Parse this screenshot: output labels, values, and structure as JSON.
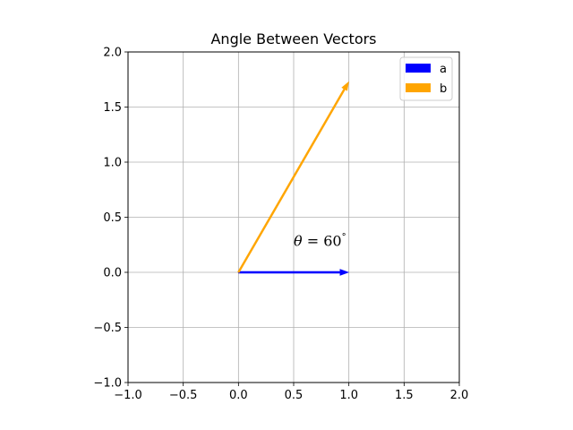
{
  "chart_data": {
    "type": "quiver",
    "title": "Angle Between Vectors",
    "xlabel": "",
    "ylabel": "",
    "xlim": [
      -1.0,
      2.0
    ],
    "ylim": [
      -1.0,
      2.0
    ],
    "grid": true,
    "x_ticks": [
      -1.0,
      -0.5,
      0.0,
      0.5,
      1.0,
      1.5,
      2.0
    ],
    "y_ticks": [
      -1.0,
      -0.5,
      0.0,
      0.5,
      1.0,
      1.5,
      2.0
    ],
    "x_tick_labels": [
      "−1.0",
      "−0.5",
      "0.0",
      "0.5",
      "1.0",
      "1.5",
      "2.0"
    ],
    "y_tick_labels": [
      "−1.0",
      "−0.5",
      "0.0",
      "0.5",
      "1.0",
      "1.5",
      "2.0"
    ],
    "legend_position": "top-right",
    "series": [
      {
        "name": "a",
        "color": "#0000ff",
        "origin": [
          0,
          0
        ],
        "vector": [
          1.0,
          0.0
        ]
      },
      {
        "name": "b",
        "color": "#ffa500",
        "origin": [
          0,
          0
        ],
        "vector": [
          1.0,
          1.732
        ]
      }
    ],
    "annotations": [
      {
        "text_symbol": "θ",
        "text_rest": " = 60",
        "text_degree": "°",
        "x": 0.5,
        "y": 0.2
      }
    ]
  }
}
